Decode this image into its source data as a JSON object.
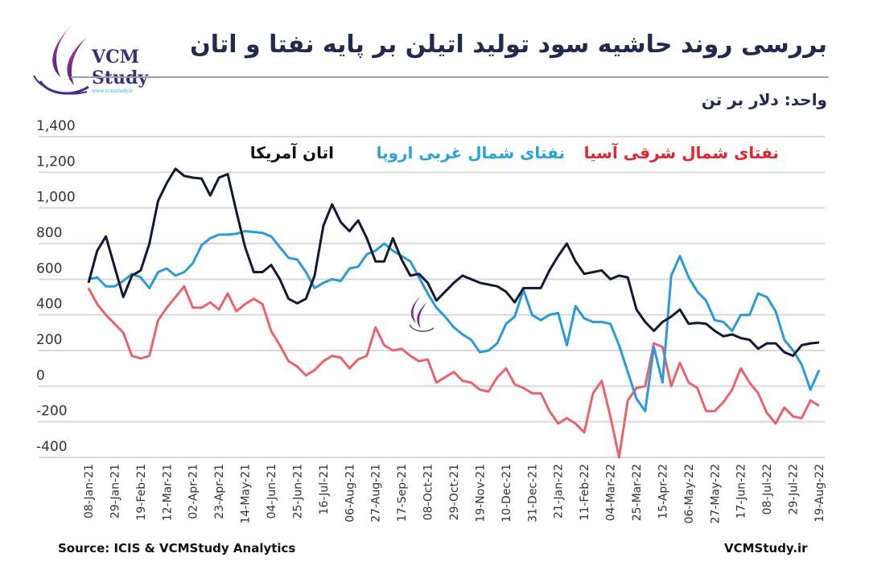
{
  "header": {
    "title": "بررسی روند حاشیه سود تولید اتیلن بر پایه نفتا و اتان",
    "unit": "واحد: دلار بر تن",
    "logo_text": "VCM Study",
    "logo_sub": "www.vcmstudy.ir"
  },
  "footer": {
    "source": "Source: ICIS & VCMStudy Analytics",
    "site": "VCMStudy.ir"
  },
  "chart_data": {
    "type": "line",
    "title": "بررسی روند حاشیه سود تولید اتیلن بر پایه نفتا و اتان",
    "ylabel": "واحد: دلار بر تن",
    "ylim": [
      -400,
      1400
    ],
    "y_ticks": [
      "1,400",
      "1,200",
      "1,000",
      "800",
      "600",
      "400",
      "200",
      "0",
      "-200",
      "-400"
    ],
    "y_tick_values": [
      1400,
      1200,
      1000,
      800,
      600,
      400,
      200,
      0,
      -200,
      -400
    ],
    "x_frequency": "weekly",
    "x_ticks": [
      "08-Jan-21",
      "29-Jan-21",
      "19-Feb-21",
      "12-Mar-21",
      "02-Apr-21",
      "23-Apr-21",
      "14-May-21",
      "04-Jun-21",
      "25-Jun-21",
      "16-Jul-21",
      "06-Aug-21",
      "27-Aug-21",
      "17-Sep-21",
      "08-Oct-21",
      "29-Oct-21",
      "19-Nov-21",
      "10-Dec-21",
      "31-Dec-21",
      "21-Jan-22",
      "11-Feb-22",
      "04-Mar-22",
      "25-Mar-22",
      "15-Apr-22",
      "06-May-22",
      "27-May-22",
      "17-Jun-22",
      "08-Jul-22",
      "29-Jul-22",
      "19-Aug-22"
    ],
    "grid": true,
    "legend_position": "top",
    "series": [
      {
        "name": "نفتای شمال شرقی آسیا",
        "color": "#e8646c",
        "values": [
          550,
          460,
          400,
          350,
          300,
          170,
          155,
          170,
          370,
          440,
          500,
          560,
          440,
          440,
          470,
          430,
          520,
          420,
          460,
          490,
          460,
          310,
          230,
          140,
          110,
          60,
          90,
          140,
          170,
          160,
          100,
          150,
          170,
          330,
          230,
          200,
          210,
          170,
          140,
          150,
          20,
          50,
          80,
          30,
          20,
          -20,
          -30,
          50,
          100,
          10,
          -10,
          -40,
          -40,
          -140,
          -210,
          -180,
          -210,
          -260,
          -40,
          30,
          -170,
          -400,
          -80,
          -10,
          0,
          240,
          220,
          0,
          130,
          20,
          -10,
          -140,
          -140,
          -90,
          -20,
          100,
          20,
          -40,
          -150,
          -210,
          -120,
          -170,
          -180,
          -80,
          -110
        ]
      },
      {
        "name": "نفتای شمال غربی اروپا",
        "color": "#2b9ad6",
        "values": [
          600,
          610,
          560,
          560,
          590,
          630,
          610,
          550,
          640,
          660,
          620,
          640,
          690,
          790,
          830,
          850,
          850,
          855,
          870,
          865,
          860,
          840,
          780,
          720,
          710,
          640,
          550,
          580,
          600,
          590,
          660,
          670,
          740,
          760,
          800,
          760,
          730,
          700,
          610,
          520,
          440,
          390,
          330,
          290,
          260,
          190,
          200,
          240,
          350,
          390,
          540,
          400,
          370,
          400,
          410,
          230,
          450,
          380,
          360,
          360,
          350,
          230,
          80,
          -70,
          -140,
          220,
          20,
          620,
          730,
          610,
          530,
          480,
          370,
          360,
          310,
          400,
          400,
          520,
          500,
          420,
          260,
          200,
          120,
          -20,
          90
        ]
      },
      {
        "name": "اتان آمریکا",
        "color": "#111a30",
        "values": [
          580,
          760,
          840,
          670,
          500,
          620,
          650,
          800,
          1040,
          1140,
          1220,
          1180,
          1170,
          1165,
          1070,
          1170,
          1190,
          980,
          780,
          640,
          640,
          680,
          600,
          490,
          465,
          490,
          620,
          900,
          1020,
          920,
          870,
          930,
          830,
          700,
          700,
          830,
          710,
          620,
          630,
          580,
          480,
          530,
          580,
          620,
          600,
          580,
          570,
          560,
          530,
          470,
          550,
          550,
          550,
          650,
          730,
          800,
          700,
          630,
          640,
          650,
          600,
          620,
          610,
          430,
          360,
          310,
          360,
          390,
          430,
          350,
          355,
          350,
          310,
          280,
          290,
          270,
          260,
          210,
          240,
          240,
          190,
          170,
          230,
          240,
          245
        ]
      }
    ]
  }
}
